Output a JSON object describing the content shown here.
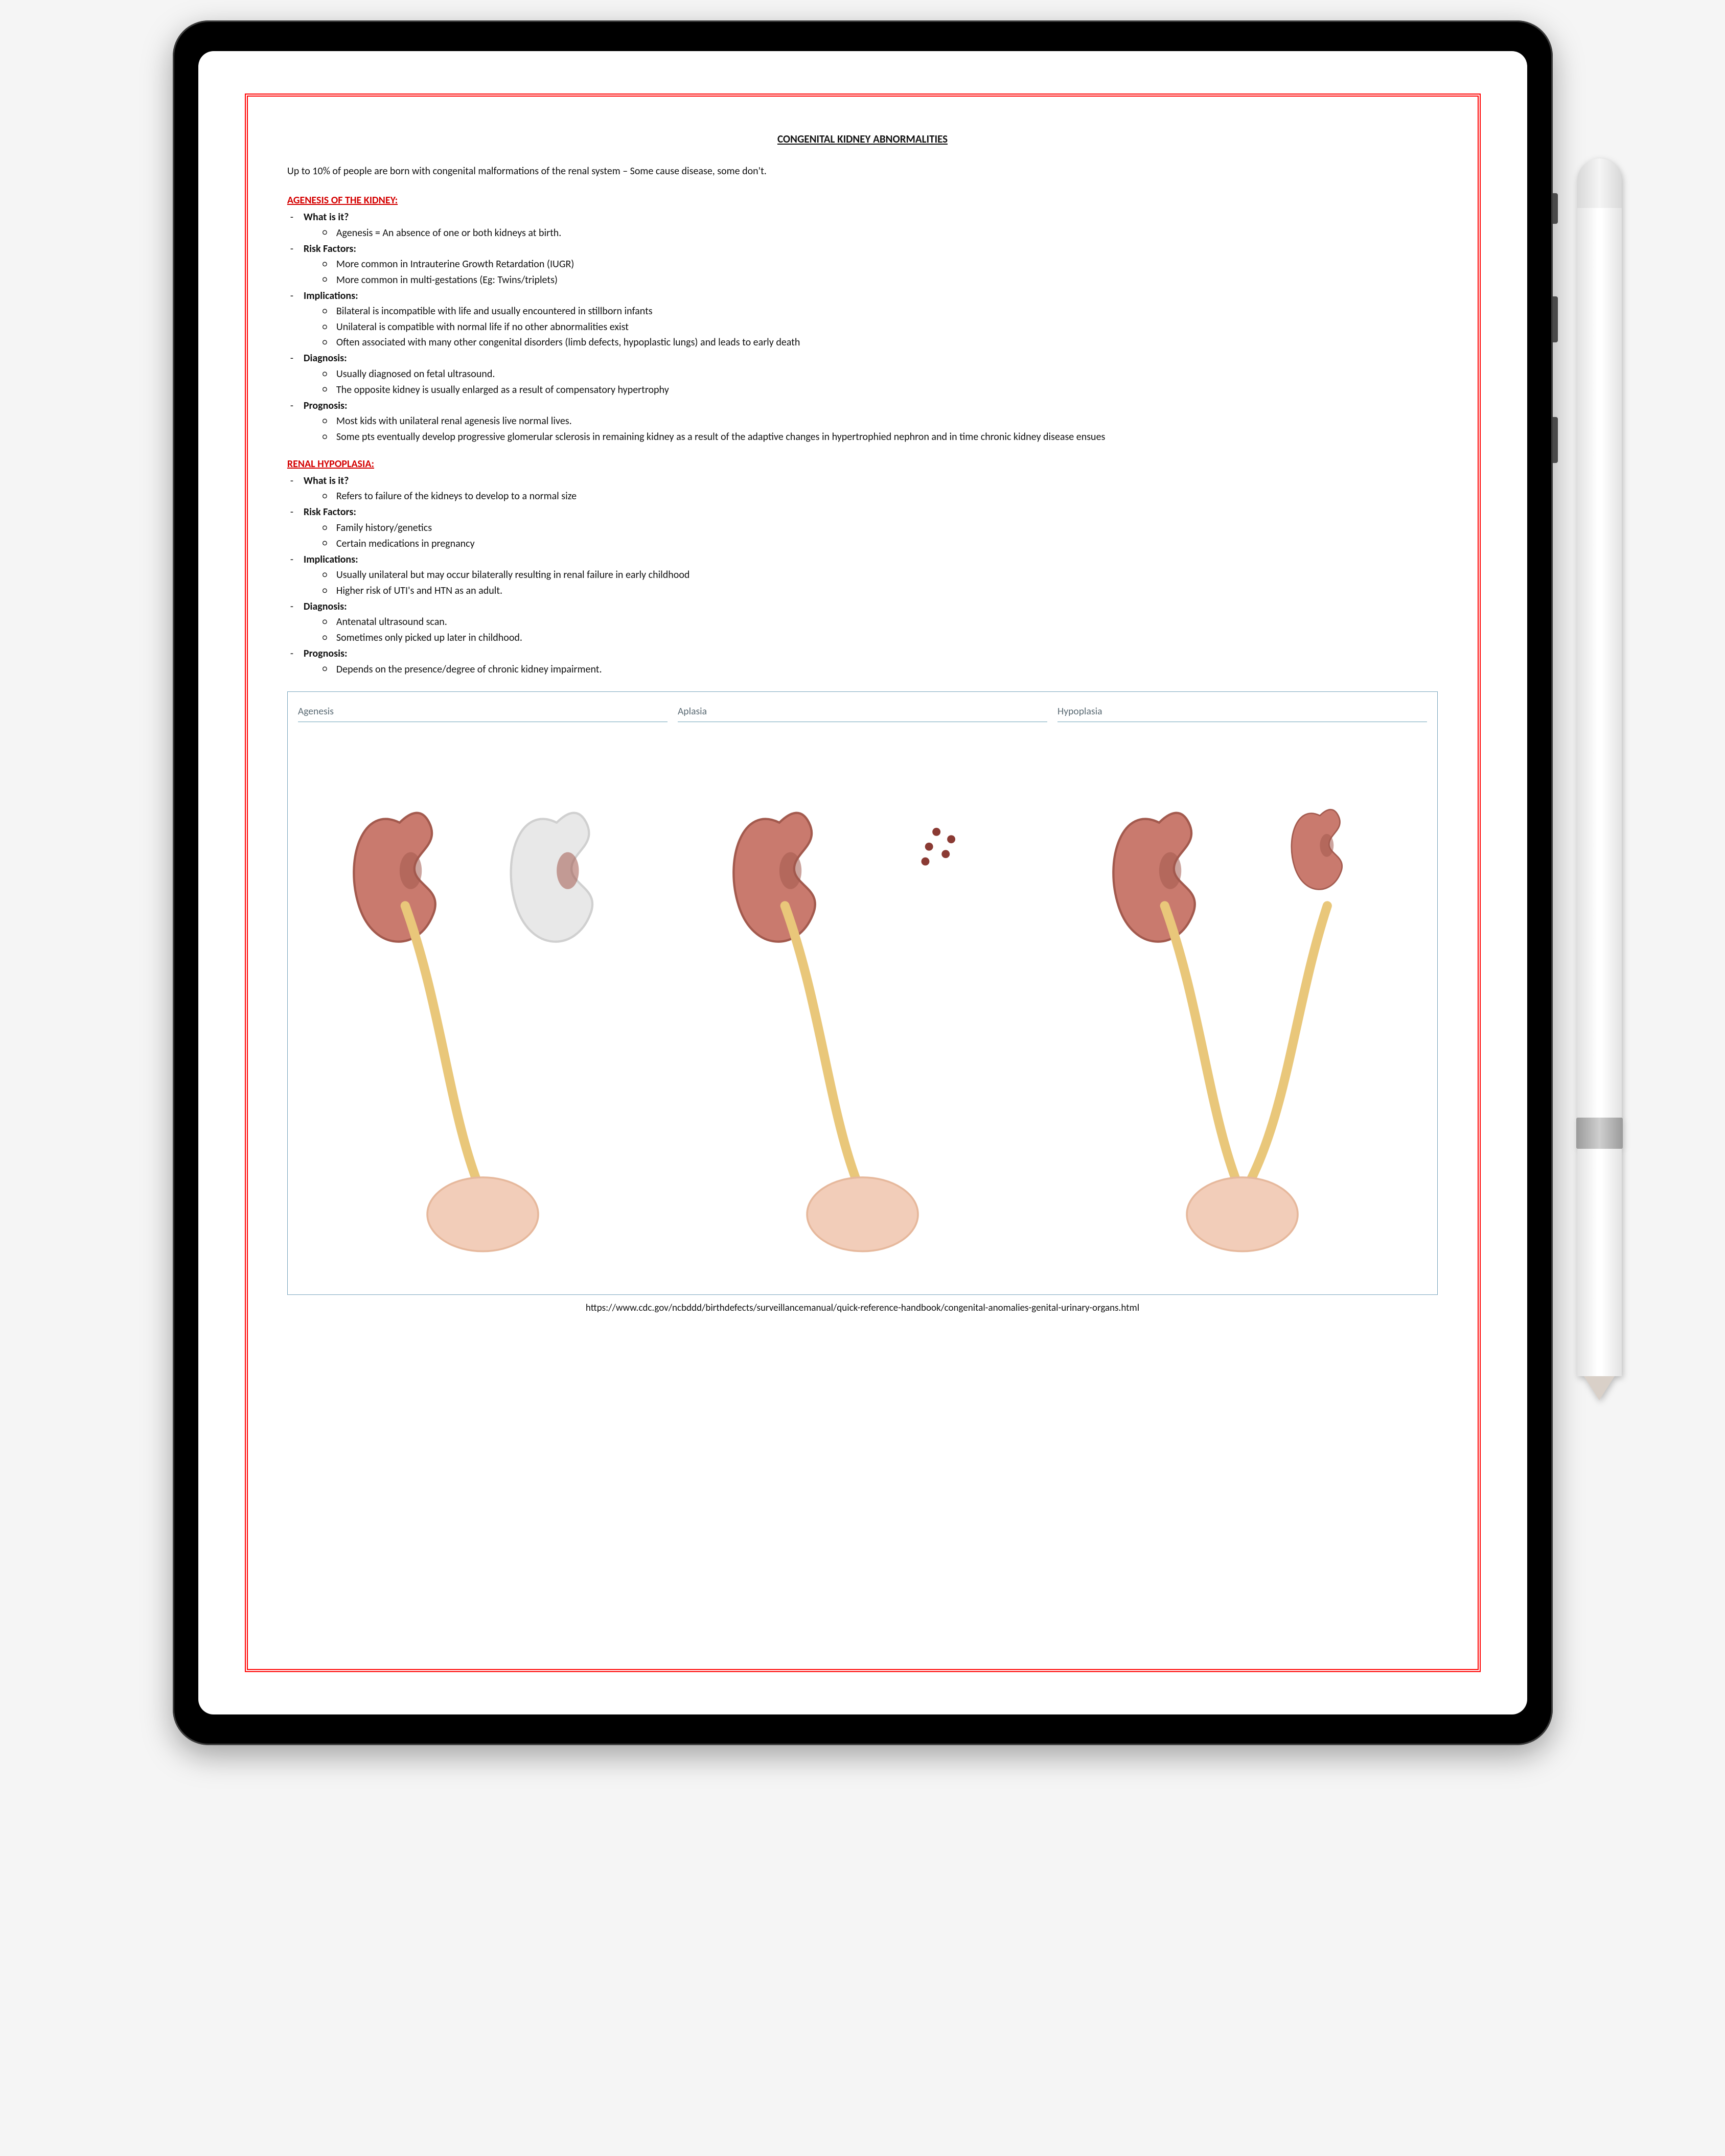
{
  "title": "CONGENITAL KIDNEY ABNORMALITIES",
  "intro": "Up to 10% of people are born with congenital malformations of the renal system – Some cause disease, some don't.",
  "sections": [
    {
      "heading": "AGENESIS OF THE KIDNEY:",
      "items": [
        {
          "label": "What is it?",
          "points": [
            "Agenesis = An absence of one or both kidneys at birth."
          ]
        },
        {
          "label": "Risk Factors:",
          "points": [
            "More common in Intrauterine Growth Retardation (IUGR)",
            "More common in multi-gestations (Eg: Twins/triplets)"
          ]
        },
        {
          "label": "Implications:",
          "points": [
            "Bilateral is incompatible with life and usually encountered in stillborn infants",
            "Unilateral is compatible with normal life if no other abnormalities exist",
            "Often associated with many other congenital disorders (limb defects, hypoplastic lungs) and leads to early death"
          ]
        },
        {
          "label": "Diagnosis:",
          "points": [
            "Usually diagnosed on fetal ultrasound.",
            "The opposite kidney is usually enlarged as a result of compensatory hypertrophy"
          ]
        },
        {
          "label": "Prognosis:",
          "points": [
            "Most kids with unilateral renal agenesis live normal lives.",
            "Some pts eventually develop progressive glomerular sclerosis in remaining kidney as a result of the adaptive changes in hypertrophied nephron and in time chronic kidney disease ensues"
          ]
        }
      ]
    },
    {
      "heading": "RENAL HYPOPLASIA:",
      "items": [
        {
          "label": "What is it?",
          "points": [
            "Refers to failure of the kidneys to develop to a normal size"
          ]
        },
        {
          "label": "Risk Factors:",
          "points": [
            "Family history/genetics",
            "Certain medications in pregnancy"
          ]
        },
        {
          "label": "Implications:",
          "points": [
            "Usually unilateral but may occur bilaterally resulting in renal failure in early childhood",
            "Higher risk of UTI's and HTN as an adult."
          ]
        },
        {
          "label": "Diagnosis:",
          "points": [
            "Antenatal ultrasound scan.",
            "Sometimes only picked up later in childhood."
          ]
        },
        {
          "label": "Prognosis:",
          "points": [
            "Depends on the presence/degree of chronic kidney impairment."
          ]
        }
      ]
    }
  ],
  "diagram": {
    "border_color": "#7aa6be",
    "label_color": "#5a6a73",
    "kidney_color": "#c97a6e",
    "kidney_shadow": "#a35a4e",
    "ureter_color": "#e9c77a",
    "bladder_color": "#f2cdb9",
    "ghost_color": "#e8e8e8",
    "panels": [
      {
        "label": "Agenesis",
        "left": "normal",
        "right": "ghost"
      },
      {
        "label": "Aplasia",
        "left": "normal",
        "right": "speckle"
      },
      {
        "label": "Hypoplasia",
        "left": "normal",
        "right": "small"
      }
    ]
  },
  "source_url": "https://www.cdc.gov/ncbddd/birthdefects/surveillancemanual/quick-reference-handbook/congenital-anomalies-genital-urinary-organs.html",
  "colors": {
    "page_border": "#f00",
    "section_heading": "#d40000",
    "text": "#111111",
    "background": "#ffffff",
    "tablet_bezel": "#000000"
  },
  "typography": {
    "title_weight": "bold",
    "title_decoration": "underline",
    "body_font": "Calibri, Arial, sans-serif"
  }
}
